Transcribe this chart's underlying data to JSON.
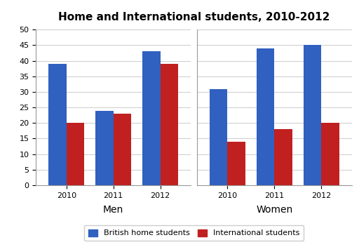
{
  "title": "Home and International students, 2010-2012",
  "groups": [
    "Men",
    "Women"
  ],
  "years": [
    "2010",
    "2011",
    "2012"
  ],
  "british_home": {
    "Men": [
      39,
      24,
      43
    ],
    "Women": [
      31,
      44,
      45
    ]
  },
  "international": {
    "Men": [
      20,
      23,
      39
    ],
    "Women": [
      14,
      18,
      20
    ]
  },
  "bar_color_british": "#3060C0",
  "bar_color_international": "#C02020",
  "ylim": [
    0,
    50
  ],
  "yticks": [
    0,
    5,
    10,
    15,
    20,
    25,
    30,
    35,
    40,
    45,
    50
  ],
  "bar_width": 0.38,
  "legend_label_british": "British home students",
  "legend_label_international": "International students",
  "group_label_fontsize": 10,
  "title_fontsize": 11,
  "tick_fontsize": 8,
  "background_color": "#FFFFFF",
  "grid_color": "#CCCCCC",
  "divider_color": "#999999"
}
